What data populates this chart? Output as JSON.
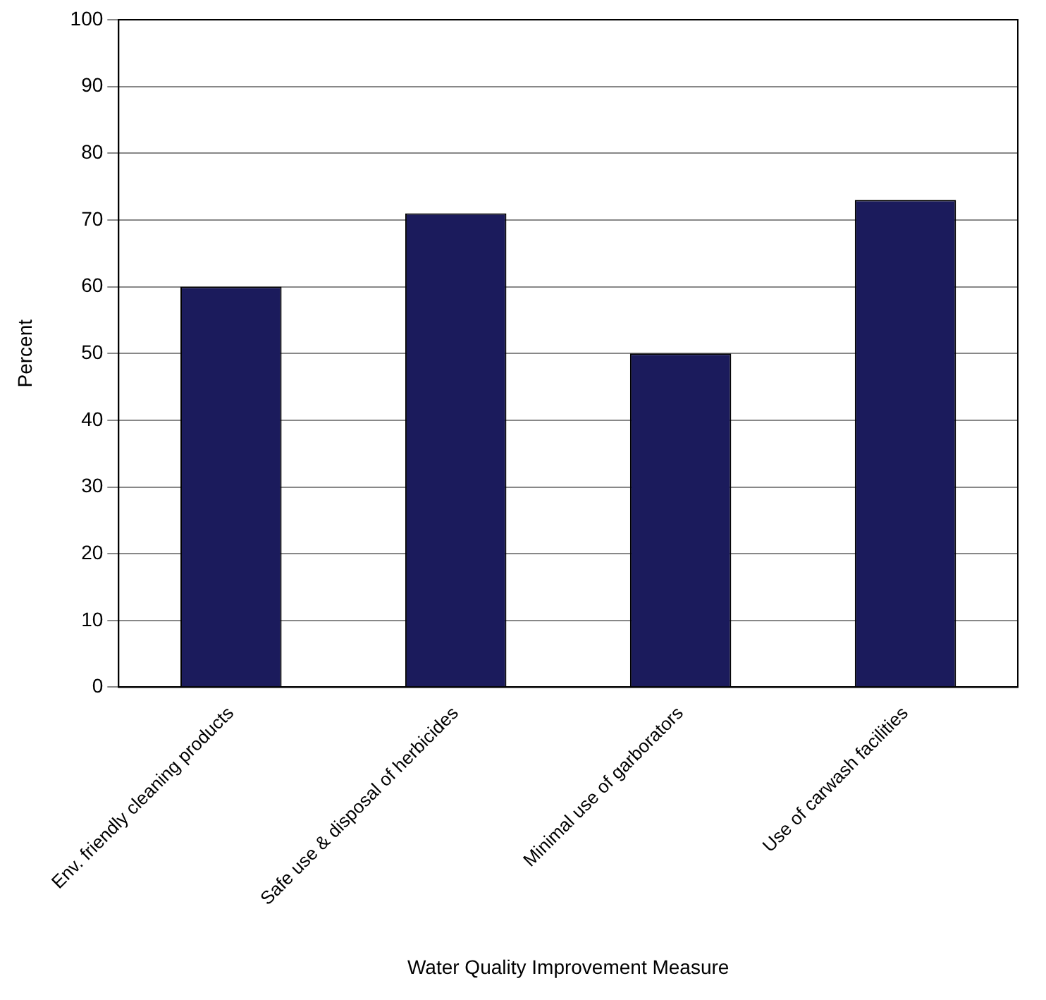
{
  "chart_data": {
    "type": "bar",
    "xlabel": "Water Quality Improvement Measure",
    "ylabel": "Percent",
    "categories": [
      "Env. friendly cleaning products",
      "Safe use & disposal of herbicides",
      "Minimal use of garborators",
      "Use of carwash facilities"
    ],
    "values": [
      60,
      71,
      50,
      73
    ],
    "color": "#1b1b5c",
    "ylim": [
      0,
      100
    ],
    "yticks": [
      0,
      10,
      20,
      30,
      40,
      50,
      60,
      70,
      80,
      90,
      100
    ],
    "grid": "y",
    "legend": false
  }
}
